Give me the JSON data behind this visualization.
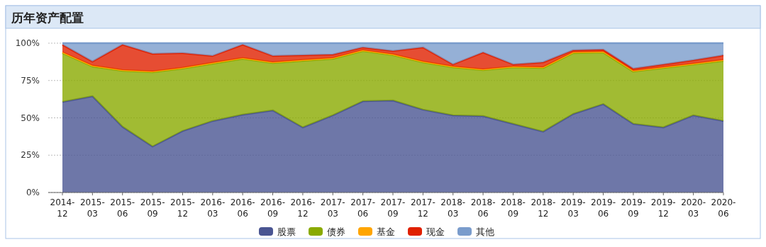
{
  "chart_data": {
    "type": "area",
    "stacked": true,
    "title": "历年资产配置",
    "categories": [
      "2014-12",
      "2015-03",
      "2015-06",
      "2015-09",
      "2015-12",
      "2016-03",
      "2016-06",
      "2016-09",
      "2016-12",
      "2017-03",
      "2017-06",
      "2017-09",
      "2017-12",
      "2018-03",
      "2018-06",
      "2018-09",
      "2018-12",
      "2019-03",
      "2019-06",
      "2019-09",
      "2019-12",
      "2020-03",
      "2020-06"
    ],
    "series": [
      {
        "name": "股票",
        "color": "#4a5592",
        "values": [
          60.7,
          64.5,
          44.0,
          30.8,
          41.2,
          47.9,
          52.1,
          55.0,
          43.6,
          51.7,
          61.1,
          61.6,
          55.5,
          51.7,
          51.2,
          46.0,
          40.8,
          52.6,
          59.2,
          46.0,
          43.6,
          51.7,
          47.9
        ]
      },
      {
        "name": "债券",
        "color": "#8aaa00",
        "values": [
          32.7,
          19.9,
          37.5,
          49.8,
          41.8,
          38.4,
          37.5,
          31.7,
          44.6,
          37.9,
          33.7,
          30.4,
          31.7,
          32.2,
          30.8,
          37.9,
          42.6,
          40.8,
          34.6,
          35.0,
          39.8,
          34.1,
          40.3
        ]
      },
      {
        "name": "基金",
        "color": "#ffa500",
        "values": [
          0.5,
          0.5,
          0.5,
          0.5,
          0.5,
          0.5,
          0.5,
          0.5,
          0.5,
          0.5,
          0.5,
          0.5,
          0.5,
          0.5,
          0.5,
          0.5,
          0.5,
          0.5,
          0.5,
          0.5,
          0.5,
          0.5,
          0.5
        ]
      },
      {
        "name": "现金",
        "color": "#e02000",
        "values": [
          5.1,
          2.8,
          17.0,
          11.8,
          9.9,
          4.7,
          8.9,
          4.3,
          3.2,
          2.3,
          1.9,
          2.3,
          9.5,
          1.4,
          11.3,
          1.4,
          3.3,
          1.4,
          1.4,
          1.4,
          1.9,
          2.3,
          3.2
        ]
      },
      {
        "name": "其他",
        "color": "#7a9ccc",
        "values": [
          1.0,
          12.3,
          1.0,
          7.1,
          6.6,
          8.5,
          1.0,
          8.5,
          8.1,
          7.6,
          2.8,
          5.2,
          2.8,
          14.2,
          6.2,
          14.2,
          12.8,
          4.7,
          4.3,
          17.1,
          14.2,
          11.4,
          8.1
        ]
      }
    ],
    "ylim": [
      0,
      100
    ],
    "yticks": [
      {
        "value": 0,
        "label": "0%"
      },
      {
        "value": 25,
        "label": "25%"
      },
      {
        "value": 50,
        "label": "50%"
      },
      {
        "value": 75,
        "label": "75%"
      },
      {
        "value": 100,
        "label": "100%"
      }
    ],
    "grid": "y",
    "legend": "bottom"
  }
}
